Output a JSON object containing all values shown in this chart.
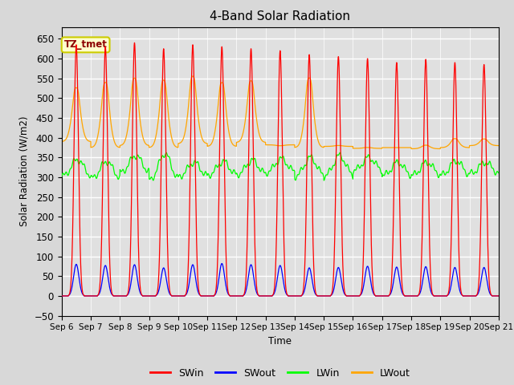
{
  "title": "4-Band Solar Radiation",
  "ylabel": "Solar Radiation (W/m2)",
  "xlabel": "Time",
  "ylim": [
    -50,
    680
  ],
  "yticks": [
    -50,
    0,
    50,
    100,
    150,
    200,
    250,
    300,
    350,
    400,
    450,
    500,
    550,
    600,
    650
  ],
  "xtick_labels": [
    "Sep 6",
    "Sep 7",
    "Sep 8",
    "Sep 9",
    "Sep 10",
    "Sep 11",
    "Sep 12",
    "Sep 13",
    "Sep 14",
    "Sep 15",
    "Sep 16",
    "Sep 17",
    "Sep 18",
    "Sep 19",
    "Sep 20",
    "Sep 21"
  ],
  "background_color": "#e0e0e0",
  "grid_color": "#ffffff",
  "fig_background": "#d8d8d8",
  "colors": {
    "SWin": "#ff0000",
    "SWout": "#0000ff",
    "LWin": "#00ff00",
    "LWout": "#ffa500"
  },
  "annotation_text": "TZ_tmet",
  "annotation_facecolor": "#ffffcc",
  "annotation_edgecolor": "#cccc00",
  "n_days": 15,
  "day_start": 6,
  "sw_peaks": [
    635,
    630,
    640,
    625,
    635,
    630,
    625,
    620,
    610,
    605,
    600,
    590,
    598,
    590,
    585
  ],
  "swout_peaks": [
    80,
    77,
    79,
    71,
    79,
    82,
    79,
    77,
    71,
    72,
    75,
    73,
    74,
    72,
    72
  ],
  "lwout_night": [
    390,
    375,
    380,
    375,
    385,
    378,
    388,
    382,
    375,
    378,
    373,
    375,
    372,
    375,
    380
  ],
  "lwout_peak": [
    510,
    520,
    530,
    525,
    535,
    520,
    525,
    380,
    530,
    380,
    375,
    375,
    380,
    395,
    395
  ],
  "lwin_base": [
    300,
    295,
    310,
    290,
    300,
    303,
    305,
    310,
    300,
    300,
    315,
    302,
    303,
    303,
    308
  ],
  "lwin_peak": [
    345,
    340,
    355,
    360,
    338,
    340,
    343,
    347,
    350,
    355,
    350,
    338,
    338,
    342,
    338
  ]
}
